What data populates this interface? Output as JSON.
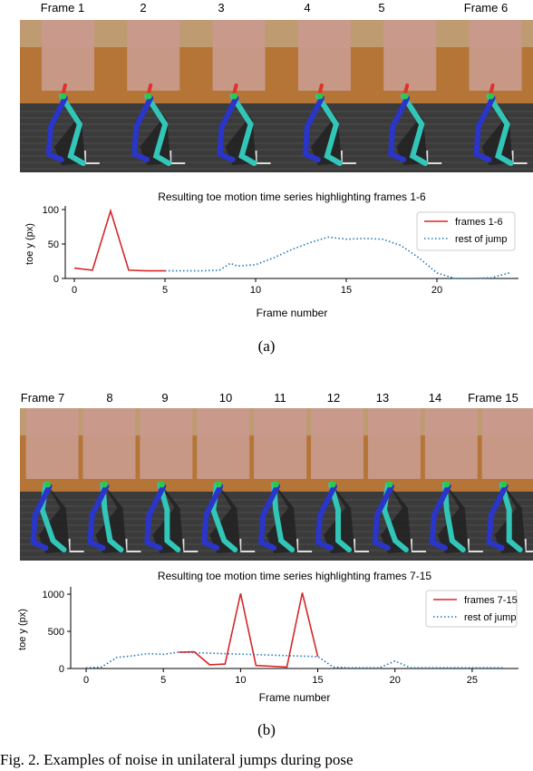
{
  "panel_a": {
    "frame_labels": [
      "Frame 1",
      "2",
      "3",
      "4",
      "5",
      "Frame 6"
    ],
    "caption": "(a)"
  },
  "panel_b": {
    "frame_labels": [
      "Frame 7",
      "8",
      "9",
      "10",
      "11",
      "12",
      "13",
      "14",
      "Frame 15"
    ],
    "caption": "(b)"
  },
  "figure_caption": "Fig. 2.   Examples of noise in unilateral jumps during pose",
  "colors": {
    "highlight": "#d62728",
    "rest": "#1f77b4",
    "floor": "#3b3b3b",
    "wall": "#b57536",
    "blur": "#c99a8c",
    "skeleton_cyan": "#31c6b8",
    "skeleton_blue": "#2a35c9"
  },
  "chart_data": [
    {
      "type": "line",
      "title": "Resulting toe motion time series highlighting frames 1-6",
      "xlabel": "Frame number",
      "ylabel": "toe y (px)",
      "xlim": [
        -0.5,
        24.5
      ],
      "ylim": [
        0,
        100
      ],
      "xticks": [
        0,
        5,
        10,
        15,
        20
      ],
      "yticks": [
        0,
        50,
        100
      ],
      "grid": false,
      "legend": "top-right",
      "series": [
        {
          "name": "frames 1-6",
          "style": "solid",
          "color": "#d62728",
          "x": [
            0,
            1,
            2,
            3,
            4,
            5
          ],
          "y": [
            15,
            12,
            98,
            12,
            11,
            11
          ]
        },
        {
          "name": "rest of jump",
          "style": "dotted",
          "color": "#1f77b4",
          "x": [
            5,
            6,
            7,
            8,
            8.6,
            9,
            10,
            11,
            12,
            13,
            14,
            15,
            16,
            17,
            18,
            19,
            20,
            21,
            22,
            23,
            24
          ],
          "y": [
            11,
            11,
            11,
            12,
            22,
            18,
            20,
            30,
            42,
            52,
            60,
            57,
            58,
            57,
            48,
            30,
            8,
            0,
            0,
            1,
            8
          ]
        }
      ]
    },
    {
      "type": "line",
      "title": "Resulting toe motion time series highlighting frames 7-15",
      "xlabel": "Frame number",
      "ylabel": "toe y (px)",
      "xlim": [
        -1,
        28
      ],
      "ylim": [
        0,
        1050
      ],
      "xticks": [
        0,
        5,
        10,
        15,
        20,
        25
      ],
      "yticks": [
        0,
        500,
        1000
      ],
      "grid": false,
      "legend": "top-right",
      "series": [
        {
          "name": "frames 7-15",
          "style": "solid",
          "color": "#d62728",
          "x": [
            6,
            7,
            8,
            9,
            10,
            11,
            12,
            13,
            14,
            15
          ],
          "y": [
            220,
            225,
            50,
            60,
            1010,
            40,
            30,
            20,
            1020,
            160
          ]
        },
        {
          "name": "rest of jump",
          "style": "dotted",
          "color": "#1f77b4",
          "x": [
            0,
            1,
            2,
            3,
            4,
            5,
            6,
            15,
            16,
            17,
            18,
            19,
            20,
            21,
            22,
            23,
            24,
            25,
            26,
            27
          ],
          "y": [
            10,
            20,
            150,
            170,
            200,
            190,
            220,
            160,
            20,
            10,
            10,
            10,
            100,
            10,
            10,
            10,
            10,
            10,
            10,
            10
          ]
        }
      ]
    }
  ]
}
